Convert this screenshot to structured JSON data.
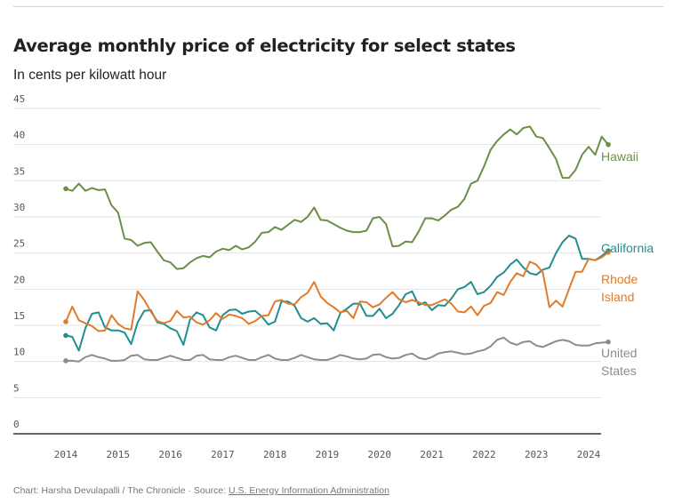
{
  "header": {
    "title": "Average monthly price of electricity for select states",
    "subtitle": "In cents per kilowatt hour"
  },
  "footer": {
    "credit": "Chart: Harsha Devulapalli / The Chronicle · Source: ",
    "source_link": "U.S. Energy Information Administration"
  },
  "chart_data": {
    "type": "line",
    "title": "Average monthly price of electricity for select states",
    "subtitle": "In cents per kilowatt hour",
    "xlabel": "",
    "ylabel": "",
    "ylim": [
      0,
      45
    ],
    "yticks": [
      0,
      5,
      10,
      15,
      20,
      25,
      30,
      35,
      40,
      45
    ],
    "xlim": [
      2014.0,
      2024.25
    ],
    "xticks": [
      "2014",
      "2015",
      "2016",
      "2017",
      "2018",
      "2019",
      "2020",
      "2021",
      "2022",
      "2023",
      "2024"
    ],
    "grid": true,
    "legend": "direct labels at right end of lines",
    "x_start": 2014.0,
    "x_step_years": 0.125,
    "series": [
      {
        "name": "Hawaii",
        "label_lines": [
          "Hawaii"
        ],
        "color": "#6b8f47",
        "values": [
          33.9,
          33.6,
          34.6,
          33.6,
          34.0,
          33.7,
          33.8,
          31.6,
          30.6,
          27.0,
          26.8,
          26.0,
          26.4,
          26.5,
          25.2,
          24.0,
          23.7,
          22.8,
          22.9,
          23.7,
          24.3,
          24.6,
          24.4,
          25.2,
          25.6,
          25.4,
          26.0,
          25.5,
          25.8,
          26.6,
          27.8,
          27.9,
          28.6,
          28.2,
          28.9,
          29.6,
          29.3,
          30.0,
          31.3,
          29.6,
          29.5,
          29.0,
          28.5,
          28.1,
          27.9,
          27.9,
          28.1,
          29.8,
          30.0,
          29.0,
          25.9,
          26.0,
          26.6,
          26.5,
          28.0,
          29.8,
          29.8,
          29.5,
          30.2,
          31.0,
          31.4,
          32.5,
          34.6,
          35.0,
          37.0,
          39.3,
          40.5,
          41.4,
          42.1,
          41.4,
          42.3,
          42.5,
          41.1,
          40.9,
          39.5,
          38.0,
          35.4,
          35.4,
          36.5,
          38.6,
          39.7,
          38.6,
          41.1,
          40.0
        ]
      },
      {
        "name": "California",
        "label_lines": [
          "California"
        ],
        "color": "#1f8f8f",
        "values": [
          13.6,
          13.4,
          11.5,
          14.6,
          16.6,
          16.8,
          14.7,
          14.3,
          14.3,
          14.0,
          12.4,
          15.4,
          17.0,
          17.1,
          15.4,
          15.2,
          14.6,
          14.2,
          12.3,
          15.8,
          16.8,
          16.4,
          14.7,
          14.3,
          16.4,
          17.1,
          17.2,
          16.6,
          16.9,
          17.0,
          16.2,
          15.1,
          15.5,
          18.3,
          18.3,
          17.7,
          16.0,
          15.5,
          16.0,
          15.2,
          15.3,
          14.3,
          16.7,
          17.3,
          18.0,
          18.0,
          16.3,
          16.3,
          17.3,
          16.0,
          16.6,
          17.8,
          19.3,
          19.7,
          17.8,
          18.2,
          17.1,
          17.8,
          17.7,
          18.7,
          20.0,
          20.3,
          21.0,
          19.3,
          19.6,
          20.5,
          21.7,
          22.3,
          23.4,
          24.1,
          23.0,
          22.2,
          22.0,
          22.7,
          23.0,
          25.0,
          26.5,
          27.4,
          27.0,
          24.2,
          24.2,
          24.0,
          24.6,
          25.3
        ]
      },
      {
        "name": "Rhode Island",
        "label_lines": [
          "Rhode",
          "Island"
        ],
        "color": "#e07b2a",
        "values": [
          15.5,
          17.6,
          15.7,
          15.3,
          14.9,
          14.2,
          14.3,
          16.4,
          15.2,
          14.6,
          14.4,
          19.7,
          18.5,
          16.9,
          15.6,
          15.3,
          15.6,
          17.0,
          16.1,
          16.2,
          15.4,
          15.1,
          15.7,
          16.7,
          15.9,
          16.5,
          16.3,
          16.0,
          15.2,
          15.6,
          16.3,
          16.4,
          18.3,
          18.5,
          18.0,
          17.9,
          18.9,
          19.5,
          21.0,
          19.0,
          18.1,
          17.5,
          16.8,
          17.0,
          16.0,
          18.3,
          18.2,
          17.5,
          17.9,
          18.8,
          19.6,
          18.6,
          18.2,
          18.5,
          18.2,
          17.8,
          17.8,
          18.2,
          18.6,
          18.0,
          16.9,
          16.8,
          17.6,
          16.4,
          17.7,
          18.1,
          19.6,
          19.2,
          21.0,
          22.2,
          21.8,
          23.8,
          23.4,
          22.3,
          17.5,
          18.4,
          17.6,
          20.0,
          22.4,
          22.4,
          24.2,
          24.0,
          24.4,
          25.1
        ]
      },
      {
        "name": "United States",
        "label_lines": [
          "United",
          "States"
        ],
        "color": "#8c8c8c",
        "values": [
          10.1,
          10.1,
          10.0,
          10.6,
          10.9,
          10.6,
          10.4,
          10.1,
          10.1,
          10.2,
          10.8,
          10.9,
          10.3,
          10.2,
          10.2,
          10.5,
          10.8,
          10.5,
          10.2,
          10.2,
          10.8,
          10.9,
          10.3,
          10.2,
          10.2,
          10.6,
          10.8,
          10.5,
          10.2,
          10.2,
          10.6,
          10.9,
          10.4,
          10.2,
          10.2,
          10.5,
          10.9,
          10.6,
          10.3,
          10.2,
          10.2,
          10.5,
          10.9,
          10.7,
          10.4,
          10.3,
          10.4,
          10.9,
          11.0,
          10.6,
          10.4,
          10.5,
          10.9,
          11.1,
          10.5,
          10.3,
          10.6,
          11.1,
          11.3,
          11.4,
          11.2,
          11.0,
          11.1,
          11.4,
          11.6,
          12.1,
          13.0,
          13.3,
          12.6,
          12.3,
          12.7,
          12.8,
          12.2,
          12.0,
          12.4,
          12.8,
          13.0,
          12.8,
          12.3,
          12.2,
          12.2,
          12.5,
          12.6,
          12.7
        ]
      }
    ]
  }
}
